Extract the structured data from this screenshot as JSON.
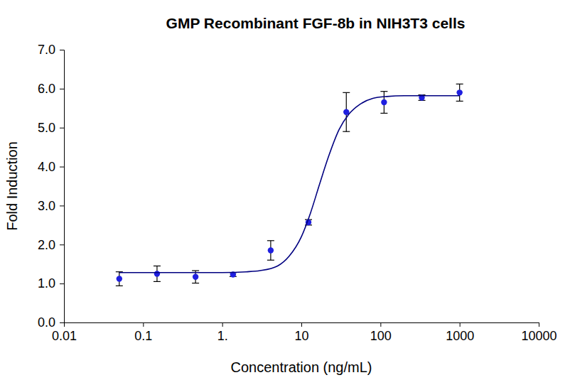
{
  "chart_data": {
    "type": "scatter",
    "title": "GMP Recombinant FGF-8b in NIH3T3 cells",
    "x_label": "Concentration (ng/mL)",
    "y_label": "Fold Induction",
    "log": "x",
    "xlim": [
      0.01,
      10000
    ],
    "xticks": [
      0.01,
      0.1,
      {
        "value": 1,
        "label": "1."
      },
      10,
      100,
      1000,
      10000
    ],
    "ylim": [
      0,
      7
    ],
    "yticks": [
      {
        "value": 0,
        "label": "0.0"
      },
      {
        "value": 1,
        "label": "1.0"
      },
      {
        "value": 2,
        "label": "2.0"
      },
      {
        "value": 3,
        "label": "3.0"
      },
      {
        "value": 4,
        "label": "4.0"
      },
      {
        "value": 5,
        "label": "5.0"
      },
      {
        "value": 6,
        "label": "6.0"
      },
      {
        "value": 7,
        "label": "7.0"
      }
    ],
    "grid": false,
    "series": [
      {
        "type": "scatter",
        "marker": "circle",
        "color": "#1f1fe0",
        "x": [
          0.05,
          0.15,
          0.46,
          1.37,
          4.1,
          12.3,
          37,
          111,
          333,
          1000
        ],
        "values": [
          1.12,
          1.25,
          1.17,
          1.23,
          1.85,
          2.57,
          5.4,
          5.65,
          5.77,
          5.9
        ],
        "errors": [
          0.18,
          0.2,
          0.16,
          0.05,
          0.25,
          0.07,
          0.5,
          0.28,
          0.07,
          0.22
        ]
      },
      {
        "type": "line",
        "line_style": "solid",
        "color": "#000080",
        "x": [
          0.05,
          0.3,
          1,
          2,
          3,
          5,
          7,
          10,
          13,
          17,
          22,
          30,
          40,
          55,
          80,
          120,
          200,
          500,
          1000
        ],
        "values": [
          1.28,
          1.28,
          1.28,
          1.3,
          1.33,
          1.45,
          1.7,
          2.2,
          2.8,
          3.55,
          4.25,
          4.95,
          5.35,
          5.6,
          5.75,
          5.8,
          5.82,
          5.82,
          5.82
        ]
      }
    ]
  }
}
